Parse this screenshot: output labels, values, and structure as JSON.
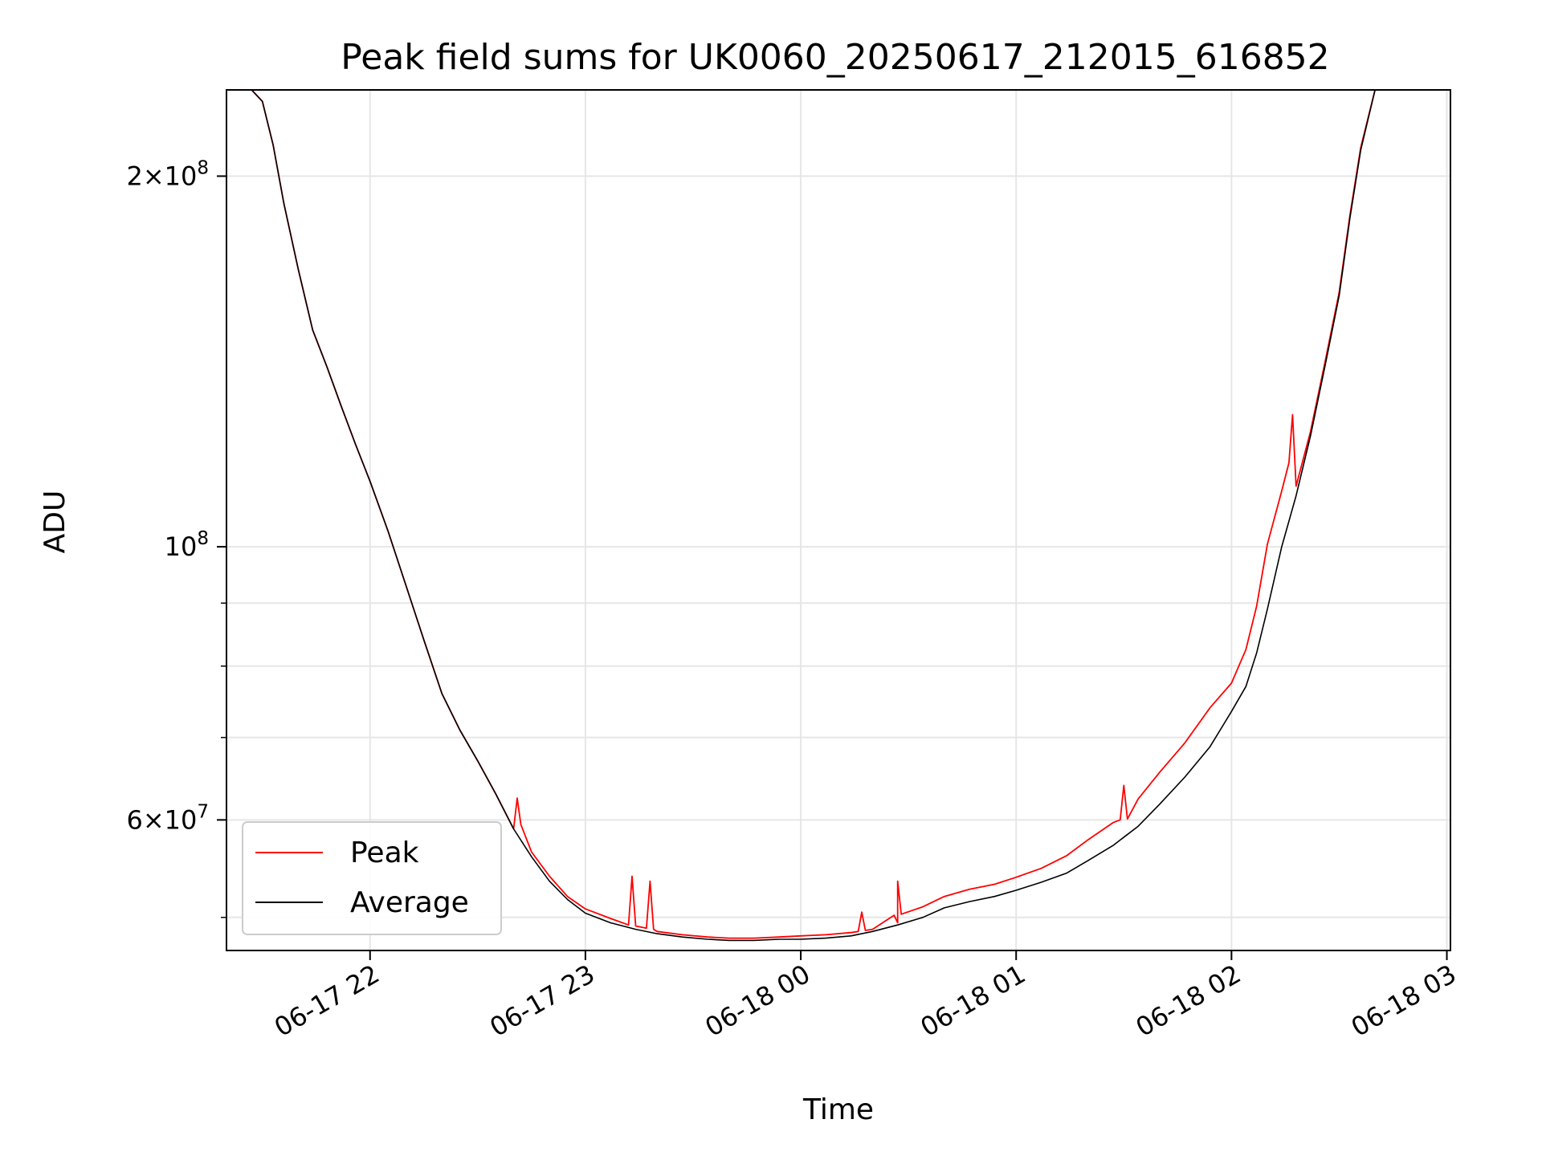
{
  "chart_data": {
    "type": "line",
    "title": "Peak field sums for UK0060_20250617_212015_616852",
    "xlabel": "Time",
    "ylabel": "ADU",
    "y_scale": "log",
    "ylim": [
      47000000,
      235000000
    ],
    "xlim": [
      "2025-06-17 21:20",
      "2025-06-18 03:01"
    ],
    "grid": true,
    "legend_position": "lower-left",
    "x_ticks": [
      {
        "value": "2025-06-17 22:00",
        "label": "06-17 22"
      },
      {
        "value": "2025-06-17 23:00",
        "label": "06-17 23"
      },
      {
        "value": "2025-06-18 00:00",
        "label": "06-18 00"
      },
      {
        "value": "2025-06-18 01:00",
        "label": "06-18 01"
      },
      {
        "value": "2025-06-18 02:00",
        "label": "06-18 02"
      },
      {
        "value": "2025-06-18 03:00",
        "label": "06-18 03"
      }
    ],
    "y_major_ticks": [
      {
        "value": 200000000,
        "mantissa": "2",
        "base": "10",
        "exp": "8"
      },
      {
        "value": 100000000,
        "mantissa": "",
        "base": "10",
        "exp": "8"
      },
      {
        "value": 60000000,
        "mantissa": "6",
        "base": "10",
        "exp": "7"
      }
    ],
    "y_minor_ticks": [
      50000000,
      70000000,
      80000000,
      90000000
    ],
    "series": [
      {
        "name": "Average",
        "color": "#000000",
        "x": [
          "2025-06-17 21:27",
          "2025-06-17 21:30",
          "2025-06-17 21:33",
          "2025-06-17 21:36",
          "2025-06-17 21:40",
          "2025-06-17 21:44",
          "2025-06-17 21:48",
          "2025-06-17 21:52",
          "2025-06-17 21:56",
          "2025-06-17 22:00",
          "2025-06-17 22:05",
          "2025-06-17 22:10",
          "2025-06-17 22:15",
          "2025-06-17 22:20",
          "2025-06-17 22:25",
          "2025-06-17 22:30",
          "2025-06-17 22:35",
          "2025-06-17 22:40",
          "2025-06-17 22:45",
          "2025-06-17 22:50",
          "2025-06-17 22:55",
          "2025-06-17 23:00",
          "2025-06-17 23:07",
          "2025-06-17 23:14",
          "2025-06-17 23:20",
          "2025-06-17 23:27",
          "2025-06-17 23:34",
          "2025-06-17 23:40",
          "2025-06-17 23:47",
          "2025-06-17 23:54",
          "2025-06-18 00:00",
          "2025-06-18 00:07",
          "2025-06-18 00:14",
          "2025-06-18 00:20",
          "2025-06-18 00:27",
          "2025-06-18 00:34",
          "2025-06-18 00:40",
          "2025-06-18 00:47",
          "2025-06-18 00:54",
          "2025-06-18 01:00",
          "2025-06-18 01:07",
          "2025-06-18 01:14",
          "2025-06-18 01:20",
          "2025-06-18 01:27",
          "2025-06-18 01:34",
          "2025-06-18 01:40",
          "2025-06-18 01:47",
          "2025-06-18 01:54",
          "2025-06-18 02:00",
          "2025-06-18 02:04",
          "2025-06-18 02:07",
          "2025-06-18 02:10",
          "2025-06-18 02:14",
          "2025-06-18 02:18",
          "2025-06-18 02:22",
          "2025-06-18 02:26",
          "2025-06-18 02:30",
          "2025-06-18 02:33",
          "2025-06-18 02:36",
          "2025-06-18 02:40"
        ],
        "values": [
          235000000,
          230000000,
          212000000,
          190000000,
          168000000,
          150000000,
          140000000,
          130000000,
          121000000,
          113000000,
          103000000,
          93000000,
          84000000,
          76000000,
          71000000,
          67000000,
          63000000,
          59000000,
          56000000,
          53500000,
          51700000,
          50400000,
          49500000,
          48900000,
          48500000,
          48200000,
          48000000,
          47900000,
          47900000,
          48000000,
          48000000,
          48100000,
          48300000,
          48700000,
          49300000,
          50000000,
          50900000,
          51500000,
          52000000,
          52600000,
          53400000,
          54300000,
          55600000,
          57200000,
          59300000,
          61800000,
          65000000,
          68800000,
          73500000,
          77000000,
          82000000,
          89000000,
          100000000,
          110000000,
          123000000,
          140000000,
          160000000,
          185000000,
          210000000,
          235000000
        ]
      },
      {
        "name": "Peak",
        "color": "#ff0000",
        "x": [
          "2025-06-17 21:27",
          "2025-06-17 21:30",
          "2025-06-17 21:33",
          "2025-06-17 21:36",
          "2025-06-17 21:40",
          "2025-06-17 21:44",
          "2025-06-17 21:48",
          "2025-06-17 21:52",
          "2025-06-17 21:56",
          "2025-06-17 22:00",
          "2025-06-17 22:05",
          "2025-06-17 22:10",
          "2025-06-17 22:15",
          "2025-06-17 22:20",
          "2025-06-17 22:25",
          "2025-06-17 22:30",
          "2025-06-17 22:35",
          "2025-06-17 22:40",
          "2025-06-17 22:41",
          "2025-06-17 22:42",
          "2025-06-17 22:45",
          "2025-06-17 22:50",
          "2025-06-17 22:55",
          "2025-06-17 23:00",
          "2025-06-17 23:07",
          "2025-06-17 23:12",
          "2025-06-17 23:13",
          "2025-06-17 23:14",
          "2025-06-17 23:17",
          "2025-06-17 23:18",
          "2025-06-17 23:19",
          "2025-06-17 23:20",
          "2025-06-17 23:27",
          "2025-06-17 23:34",
          "2025-06-17 23:40",
          "2025-06-17 23:47",
          "2025-06-17 23:54",
          "2025-06-18 00:00",
          "2025-06-18 00:07",
          "2025-06-18 00:14",
          "2025-06-18 00:16",
          "2025-06-18 00:17",
          "2025-06-18 00:18",
          "2025-06-18 00:20",
          "2025-06-18 00:27",
          "2025-06-18 00:26",
          "2025-06-18 00:27",
          "2025-06-18 00:28",
          "2025-06-18 00:34",
          "2025-06-18 00:40",
          "2025-06-18 00:47",
          "2025-06-18 00:54",
          "2025-06-18 01:00",
          "2025-06-18 01:07",
          "2025-06-18 01:14",
          "2025-06-18 01:20",
          "2025-06-18 01:27",
          "2025-06-18 01:29",
          "2025-06-18 01:30",
          "2025-06-18 01:31",
          "2025-06-18 01:34",
          "2025-06-18 01:40",
          "2025-06-18 01:47",
          "2025-06-18 01:54",
          "2025-06-18 02:00",
          "2025-06-18 02:04",
          "2025-06-18 02:07",
          "2025-06-18 02:10",
          "2025-06-18 02:14",
          "2025-06-18 02:16",
          "2025-06-18 02:17",
          "2025-06-18 02:18",
          "2025-06-18 02:22",
          "2025-06-18 02:26",
          "2025-06-18 02:30",
          "2025-06-18 02:33",
          "2025-06-18 02:36",
          "2025-06-18 02:40"
        ],
        "values": [
          235000000,
          230000000,
          212000000,
          190000000,
          168000000,
          150000000,
          140000000,
          130000000,
          121000000,
          113000000,
          103000000,
          93000000,
          84000000,
          76000000,
          71000000,
          67000000,
          63000000,
          59000000,
          62500000,
          59500000,
          56500000,
          54000000,
          52000000,
          50800000,
          49900000,
          49300000,
          54000000,
          49200000,
          49000000,
          53500000,
          48900000,
          48700000,
          48400000,
          48200000,
          48100000,
          48100000,
          48200000,
          48300000,
          48400000,
          48600000,
          48700000,
          50500000,
          48800000,
          48900000,
          49500000,
          50200000,
          53500000,
          50300000,
          51000000,
          52000000,
          52700000,
          53200000,
          53900000,
          54800000,
          56100000,
          57800000,
          59700000,
          60000000,
          64000000,
          60100000,
          62400000,
          65600000,
          69300000,
          74000000,
          77500000,
          82500000,
          89500000,
          100500000,
          111000000,
          117000000,
          128000000,
          112000000,
          124000000,
          141000000,
          161000000,
          186000000,
          211000000,
          235000000
        ]
      }
    ]
  }
}
